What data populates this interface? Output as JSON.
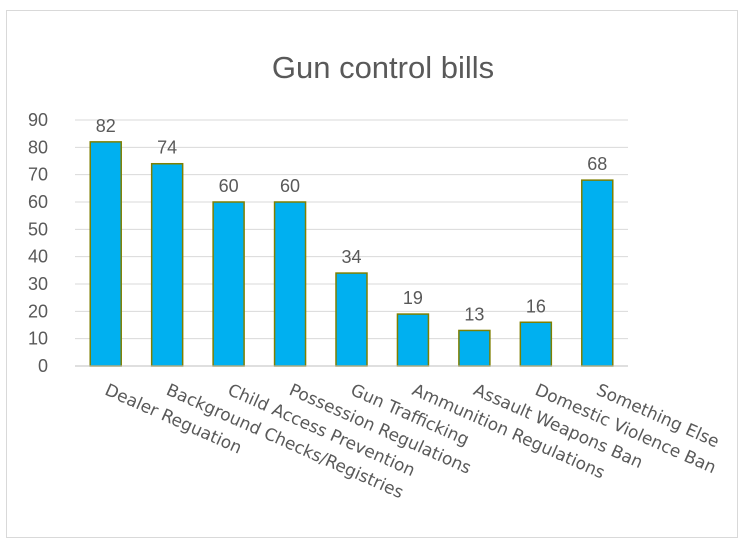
{
  "chart_data": {
    "type": "bar",
    "title": "Gun control bills",
    "xlabel": "",
    "ylabel": "",
    "ylim": [
      0,
      90
    ],
    "yticks": [
      0,
      10,
      20,
      30,
      40,
      50,
      60,
      70,
      80,
      90
    ],
    "grid": true,
    "legend": "none",
    "categories": [
      "Dealer Reguation",
      "Background Checks/Registries",
      "Child Access Prevention",
      "Possession Regulations",
      "Gun Trafficking",
      "Ammunition Regulations",
      "Assault Weapons Ban",
      "Domestic Violence Ban",
      "Something Else"
    ],
    "values": [
      82,
      74,
      60,
      60,
      34,
      19,
      13,
      16,
      68
    ],
    "colors": {
      "bar_fill": "#00B0F0",
      "bar_stroke": "#7F7F00",
      "text": "#595959",
      "grid": "#D9D9D9"
    }
  }
}
